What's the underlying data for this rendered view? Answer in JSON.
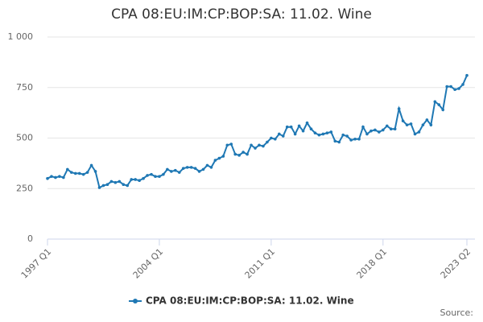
{
  "chart_data": {
    "type": "line",
    "title": "CPA 08:EU:IM:CP:BOP:SA: 11.02. Wine",
    "source": "Source:",
    "categories": [
      "1997 Q1",
      null,
      null,
      null,
      null,
      null,
      null,
      null,
      null,
      null,
      null,
      null,
      null,
      null,
      null,
      null,
      null,
      null,
      null,
      null,
      null,
      null,
      null,
      null,
      null,
      null,
      null,
      null,
      "2004 Q1",
      null,
      null,
      null,
      null,
      null,
      null,
      null,
      null,
      null,
      null,
      null,
      null,
      null,
      null,
      null,
      null,
      null,
      null,
      null,
      null,
      null,
      null,
      null,
      null,
      null,
      null,
      null,
      "2011 Q1",
      null,
      null,
      null,
      null,
      null,
      null,
      null,
      null,
      null,
      null,
      null,
      null,
      null,
      null,
      null,
      null,
      null,
      null,
      null,
      null,
      null,
      null,
      null,
      null,
      null,
      null,
      null,
      "2018 Q1",
      null,
      null,
      null,
      null,
      null,
      null,
      null,
      null,
      null,
      null,
      null,
      null,
      null,
      null,
      null,
      null,
      null,
      null,
      null,
      null,
      "2023 Q2"
    ],
    "series": [
      {
        "name": "CPA 08:EU:IM:CP:BOP:SA: 11.02. Wine",
        "color": "#1f78b4",
        "values": [
          300,
          310,
          305,
          310,
          305,
          345,
          330,
          325,
          325,
          320,
          330,
          365,
          335,
          255,
          265,
          270,
          285,
          280,
          285,
          270,
          265,
          295,
          295,
          290,
          300,
          315,
          320,
          310,
          310,
          320,
          345,
          335,
          340,
          330,
          350,
          355,
          355,
          350,
          335,
          345,
          365,
          355,
          390,
          400,
          410,
          465,
          470,
          420,
          415,
          430,
          420,
          465,
          450,
          465,
          460,
          480,
          500,
          495,
          520,
          510,
          555,
          555,
          520,
          560,
          535,
          575,
          545,
          525,
          515,
          520,
          525,
          530,
          485,
          480,
          515,
          510,
          490,
          495,
          495,
          555,
          520,
          535,
          540,
          530,
          540,
          560,
          545,
          545,
          645,
          585,
          565,
          570,
          520,
          530,
          565,
          590,
          565,
          680,
          665,
          640,
          755,
          755,
          740,
          745,
          765,
          810
        ]
      }
    ],
    "ylim": [
      0,
      1000
    ],
    "yticks": [
      0,
      250,
      500,
      750,
      {
        "value": 1000,
        "label": "1 000"
      }
    ],
    "grid": true
  }
}
